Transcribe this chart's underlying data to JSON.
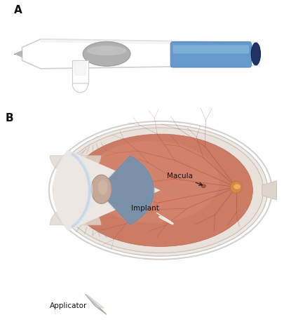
{
  "fig_width": 4.05,
  "fig_height": 4.59,
  "dpi": 100,
  "background_color": "#ffffff",
  "panel_a_label": "A",
  "panel_b_label": "B",
  "label_fontsize": 11,
  "label_fontweight": "bold",
  "panel_a_bg": "#c2c2c2",
  "macula_label": "Macula",
  "implant_label": "Implant",
  "applicator_label": "Applicator",
  "text_color": "#111111",
  "arrow_color": "#111111",
  "sclera_outer_color": "#f5f3f0",
  "sclera_ring_color": "#e8e2dc",
  "vitreous_color": "#c97b65",
  "vitreous_dark_color": "#b56855",
  "lens_color": "#c8a898",
  "iris_color": "#8090a8",
  "optic_disc_color": "#d4894a",
  "vessel_color": "#9a4535",
  "implant_color": "#e8e0d8",
  "applicator_color": "#c8c0b8"
}
